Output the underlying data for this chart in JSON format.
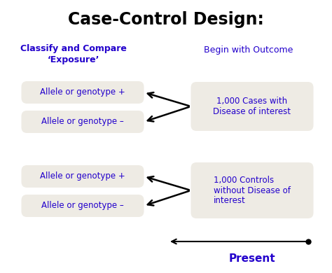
{
  "title": "Case-Control Design:",
  "title_fontsize": 17,
  "title_color": "#000000",
  "title_fontweight": "bold",
  "bg_color": "#ffffff",
  "box_color": "#eeebe4",
  "text_color": "#2200cc",
  "arrow_color": "#000000",
  "left_label": "Classify and Compare\n‘Exposure’",
  "right_label_top": "Begin with Outcome",
  "bottom_label": "Present",
  "boxes_left": [
    "Allele or genotype +",
    "Allele or genotype –"
  ],
  "boxes_left_bottom": [
    "Allele or genotype +",
    "Allele or genotype –"
  ],
  "box_right_top": "1,000 Cases with\nDisease of interest",
  "box_right_bottom": "1,000 Controls\nwithout Disease of\ninterest"
}
